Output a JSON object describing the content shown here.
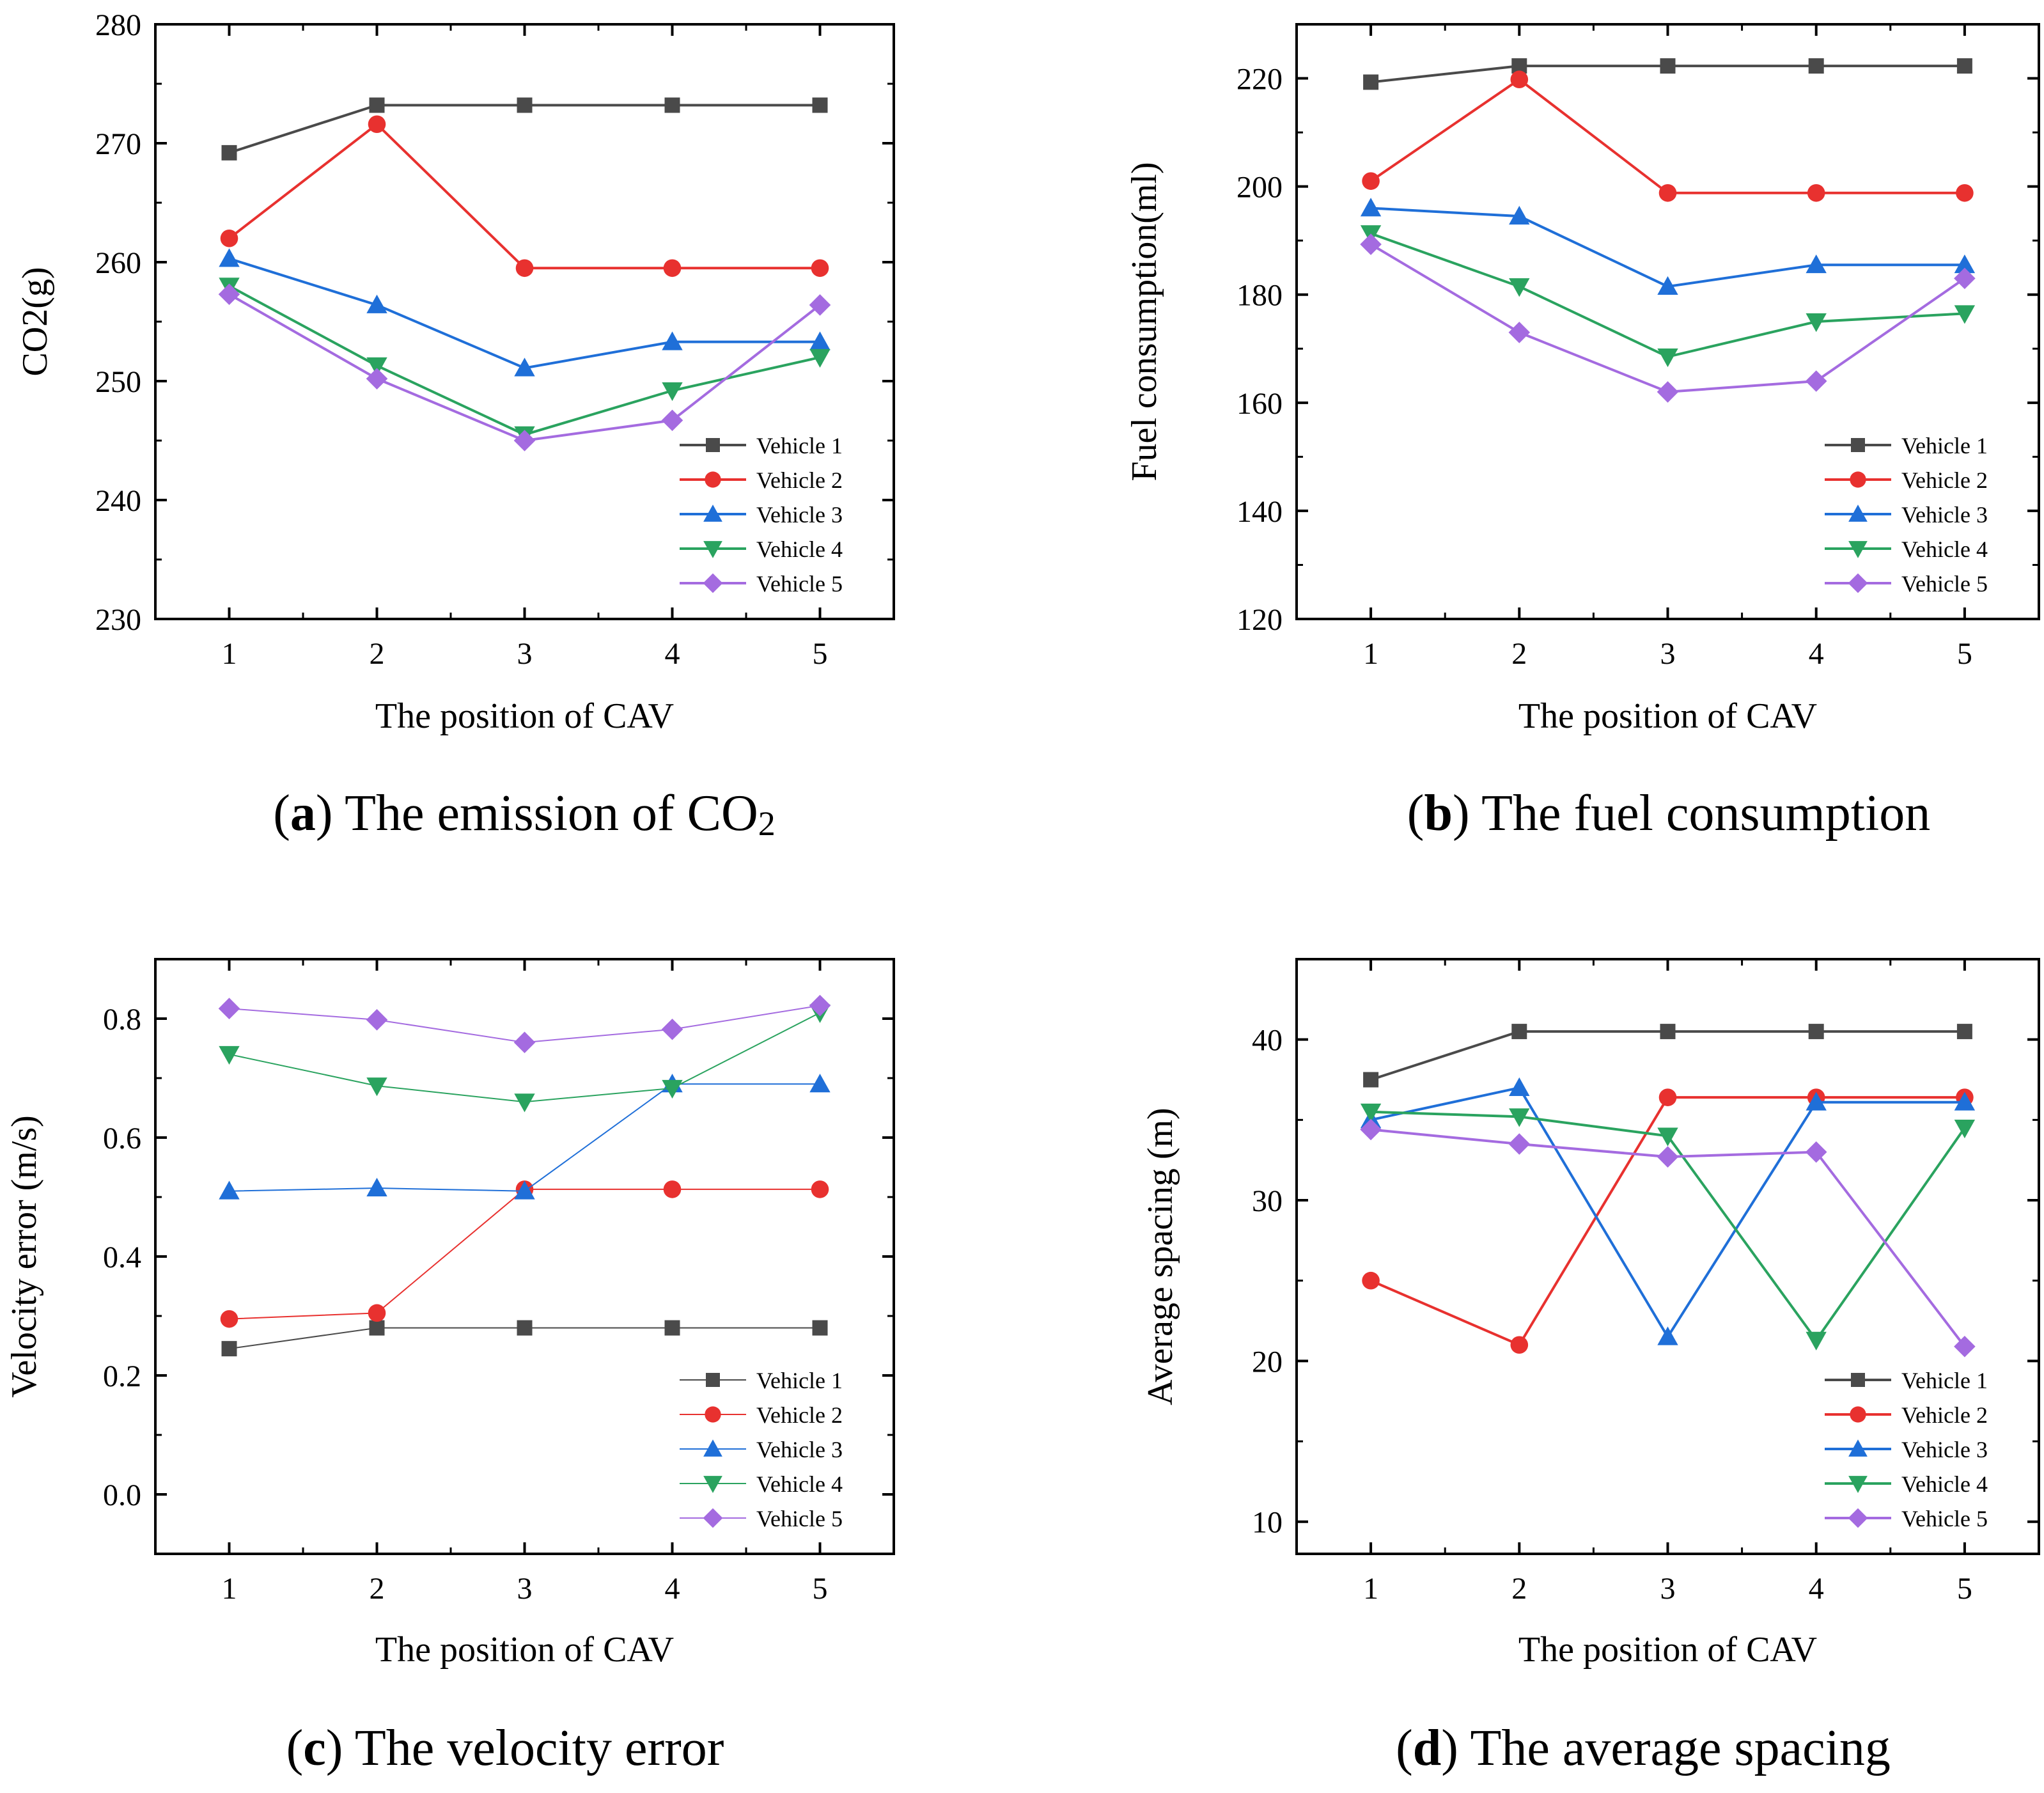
{
  "chart_data": [
    {
      "type": "line",
      "x": [
        1,
        2,
        3,
        4,
        5
      ],
      "xlabel": "The position of CAV",
      "ylabel": "CO2(g)",
      "xlim": [
        0.5,
        5.5
      ],
      "ylim": [
        230,
        280
      ],
      "yticks": [
        230,
        240,
        250,
        260,
        270,
        280
      ],
      "legend_position": "lower-right",
      "caption": {
        "letter": "a",
        "open": "(",
        "close": ")",
        "text": " The emission of CO",
        "subscript": "2"
      },
      "series": [
        {
          "name": "Vehicle 1",
          "color": "#4a4a4a",
          "marker": "square",
          "values": [
            269.2,
            273.2,
            273.2,
            273.2,
            273.2
          ]
        },
        {
          "name": "Vehicle 2",
          "color": "#e8312f",
          "marker": "circle",
          "values": [
            262.0,
            271.6,
            259.5,
            259.5,
            259.5
          ]
        },
        {
          "name": "Vehicle 3",
          "color": "#1f6fd8",
          "marker": "triangle-up",
          "values": [
            260.3,
            256.4,
            251.1,
            253.3,
            253.3
          ]
        },
        {
          "name": "Vehicle 4",
          "color": "#2aa35f",
          "marker": "triangle-down",
          "values": [
            258.0,
            251.3,
            245.5,
            249.2,
            252.0
          ]
        },
        {
          "name": "Vehicle 5",
          "color": "#a46be0",
          "marker": "diamond",
          "values": [
            257.3,
            250.2,
            245.0,
            246.7,
            256.4
          ]
        }
      ]
    },
    {
      "type": "line",
      "x": [
        1,
        2,
        3,
        4,
        5
      ],
      "xlabel": "The position of CAV",
      "ylabel": "Fuel consumption(ml)",
      "xlim": [
        0.5,
        5.5
      ],
      "ylim": [
        120,
        230
      ],
      "yticks": [
        120,
        140,
        160,
        180,
        200,
        220
      ],
      "legend_position": "lower-right",
      "caption": {
        "letter": "b",
        "open": "(",
        "close": ")",
        "text": " The fuel consumption"
      },
      "series": [
        {
          "name": "Vehicle 1",
          "color": "#4a4a4a",
          "marker": "square",
          "values": [
            219.3,
            222.3,
            222.3,
            222.3,
            222.3
          ]
        },
        {
          "name": "Vehicle 2",
          "color": "#e8312f",
          "marker": "circle",
          "values": [
            201.0,
            219.8,
            198.8,
            198.8,
            198.8
          ]
        },
        {
          "name": "Vehicle 3",
          "color": "#1f6fd8",
          "marker": "triangle-up",
          "values": [
            196.0,
            194.5,
            181.5,
            185.5,
            185.5
          ]
        },
        {
          "name": "Vehicle 4",
          "color": "#2aa35f",
          "marker": "triangle-down",
          "values": [
            191.3,
            181.5,
            168.5,
            175.0,
            176.5
          ]
        },
        {
          "name": "Vehicle 5",
          "color": "#a46be0",
          "marker": "diamond",
          "values": [
            189.3,
            173.0,
            162.0,
            164.0,
            183.0
          ]
        }
      ]
    },
    {
      "type": "line",
      "x": [
        1,
        2,
        3,
        4,
        5
      ],
      "xlabel": "The position of CAV",
      "ylabel": "Velocity error (m/s)",
      "xlim": [
        0.5,
        5.5
      ],
      "ylim": [
        -0.1,
        0.9
      ],
      "yticks": [
        0.0,
        0.2,
        0.4,
        0.6,
        0.8
      ],
      "tick_decimals": 1,
      "thin_lines": true,
      "legend_position": "lower-right",
      "caption": {
        "letter": "c",
        "open": "(",
        "close": ")",
        "text": " The velocity error"
      },
      "series": [
        {
          "name": "Vehicle 1",
          "color": "#4a4a4a",
          "marker": "square",
          "values": [
            0.245,
            0.28,
            0.28,
            0.28,
            0.28
          ]
        },
        {
          "name": "Vehicle 2",
          "color": "#e8312f",
          "marker": "circle",
          "values": [
            0.295,
            0.305,
            0.513,
            0.513,
            0.513
          ]
        },
        {
          "name": "Vehicle 3",
          "color": "#1f6fd8",
          "marker": "triangle-up",
          "values": [
            0.51,
            0.515,
            0.51,
            0.69,
            0.69
          ]
        },
        {
          "name": "Vehicle 4",
          "color": "#2aa35f",
          "marker": "triangle-down",
          "values": [
            0.74,
            0.687,
            0.66,
            0.683,
            0.81
          ]
        },
        {
          "name": "Vehicle 5",
          "color": "#a46be0",
          "marker": "diamond",
          "values": [
            0.817,
            0.798,
            0.76,
            0.782,
            0.822
          ]
        }
      ]
    },
    {
      "type": "line",
      "x": [
        1,
        2,
        3,
        4,
        5
      ],
      "xlabel": "The position of CAV",
      "ylabel": "Average spacing (m)",
      "xlim": [
        0.5,
        5.5
      ],
      "ylim": [
        8,
        45
      ],
      "yticks": [
        10,
        20,
        30,
        40
      ],
      "legend_position": "lower-right",
      "caption": {
        "letter": "d",
        "open": "(",
        "close": ")",
        "text": " The average spacing"
      },
      "series": [
        {
          "name": "Vehicle 1",
          "color": "#4a4a4a",
          "marker": "square",
          "values": [
            37.5,
            40.5,
            40.5,
            40.5,
            40.5
          ]
        },
        {
          "name": "Vehicle 2",
          "color": "#e8312f",
          "marker": "circle",
          "values": [
            25.0,
            21.0,
            36.4,
            36.4,
            36.4
          ]
        },
        {
          "name": "Vehicle 3",
          "color": "#1f6fd8",
          "marker": "triangle-up",
          "values": [
            35.0,
            37.0,
            21.5,
            36.1,
            36.1
          ]
        },
        {
          "name": "Vehicle 4",
          "color": "#2aa35f",
          "marker": "triangle-down",
          "values": [
            35.5,
            35.2,
            34.0,
            21.3,
            34.5
          ]
        },
        {
          "name": "Vehicle 5",
          "color": "#a46be0",
          "marker": "diamond",
          "values": [
            34.4,
            33.5,
            32.7,
            33.0,
            20.9
          ]
        }
      ]
    }
  ]
}
